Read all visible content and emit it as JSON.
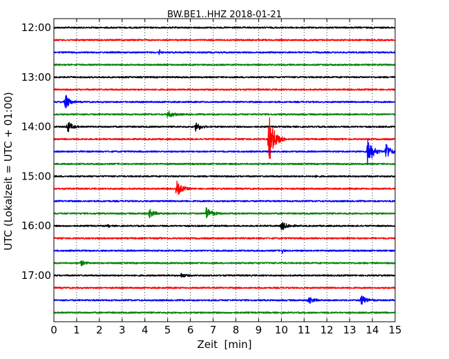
{
  "chart_data": {
    "type": "line",
    "title": "BW.BE1..HHZ 2018-01-21",
    "xlabel": "Zeit  [min]",
    "ylabel": "UTC (Lokalzeit = UTC + 01:00)",
    "xlim": [
      0,
      15
    ],
    "x_ticks": [
      "0",
      "1",
      "2",
      "3",
      "4",
      "5",
      "6",
      "7",
      "8",
      "9",
      "10",
      "11",
      "12",
      "13",
      "14",
      "15"
    ],
    "y_ticks": [
      {
        "label": "12:00",
        "trace_index": 0
      },
      {
        "label": "13:00",
        "trace_index": 4
      },
      {
        "label": "14:00",
        "trace_index": 8
      },
      {
        "label": "15:00",
        "trace_index": 12
      },
      {
        "label": "16:00",
        "trace_index": 16
      },
      {
        "label": "17:00",
        "trace_index": 20
      }
    ],
    "grid": {
      "x": "dotted vertical at each minute",
      "y": "none"
    },
    "trace_colors": [
      "#000000",
      "#ff0000",
      "#0000ff",
      "#008000"
    ],
    "traces": [
      {
        "start": "12:00",
        "events": []
      },
      {
        "start": "12:15",
        "events": []
      },
      {
        "start": "12:30",
        "events": [
          {
            "t": 4.65,
            "amp": 4,
            "dur": 0.1
          }
        ]
      },
      {
        "start": "12:45",
        "events": []
      },
      {
        "start": "13:00",
        "events": []
      },
      {
        "start": "13:15",
        "events": []
      },
      {
        "start": "13:30",
        "events": [
          {
            "t": 0.5,
            "amp": 12,
            "dur": 0.5
          }
        ]
      },
      {
        "start": "13:45",
        "events": [
          {
            "t": 5.0,
            "amp": 5,
            "dur": 0.7
          }
        ]
      },
      {
        "start": "14:00",
        "events": [
          {
            "t": 0.6,
            "amp": 9,
            "dur": 0.5
          },
          {
            "t": 6.25,
            "amp": 8,
            "dur": 0.5
          }
        ]
      },
      {
        "start": "14:15",
        "events": [
          {
            "t": 9.45,
            "amp": 36,
            "dur": 0.7
          }
        ]
      },
      {
        "start": "14:30",
        "events": [
          {
            "t": 13.8,
            "amp": 22,
            "dur": 0.6
          },
          {
            "t": 14.6,
            "amp": 14,
            "dur": 0.5
          }
        ]
      },
      {
        "start": "14:45",
        "events": []
      },
      {
        "start": "15:00",
        "events": [
          {
            "t": 11.55,
            "amp": 2,
            "dur": 0.1
          }
        ]
      },
      {
        "start": "15:15",
        "events": [
          {
            "t": 5.4,
            "amp": 11,
            "dur": 0.6
          }
        ]
      },
      {
        "start": "15:30",
        "events": []
      },
      {
        "start": "15:45",
        "events": [
          {
            "t": 4.2,
            "amp": 6,
            "dur": 0.6
          },
          {
            "t": 6.7,
            "amp": 9,
            "dur": 0.7
          }
        ]
      },
      {
        "start": "16:00",
        "events": [
          {
            "t": 10.0,
            "amp": 6,
            "dur": 0.7
          },
          {
            "t": 2.4,
            "amp": 2,
            "dur": 0.15
          }
        ]
      },
      {
        "start": "16:15",
        "events": [
          {
            "t": 12.9,
            "amp": 2,
            "dur": 0.1
          }
        ]
      },
      {
        "start": "16:30",
        "events": [
          {
            "t": 10.05,
            "amp": 3,
            "dur": 0.15
          }
        ]
      },
      {
        "start": "16:45",
        "events": [
          {
            "t": 1.2,
            "amp": 4,
            "dur": 0.4
          }
        ]
      },
      {
        "start": "17:00",
        "events": [
          {
            "t": 5.6,
            "amp": 3,
            "dur": 0.5
          }
        ]
      },
      {
        "start": "17:15",
        "events": []
      },
      {
        "start": "17:30",
        "events": [
          {
            "t": 11.2,
            "amp": 5,
            "dur": 0.6
          },
          {
            "t": 13.5,
            "amp": 7,
            "dur": 0.7
          }
        ]
      },
      {
        "start": "17:45",
        "events": []
      }
    ]
  }
}
